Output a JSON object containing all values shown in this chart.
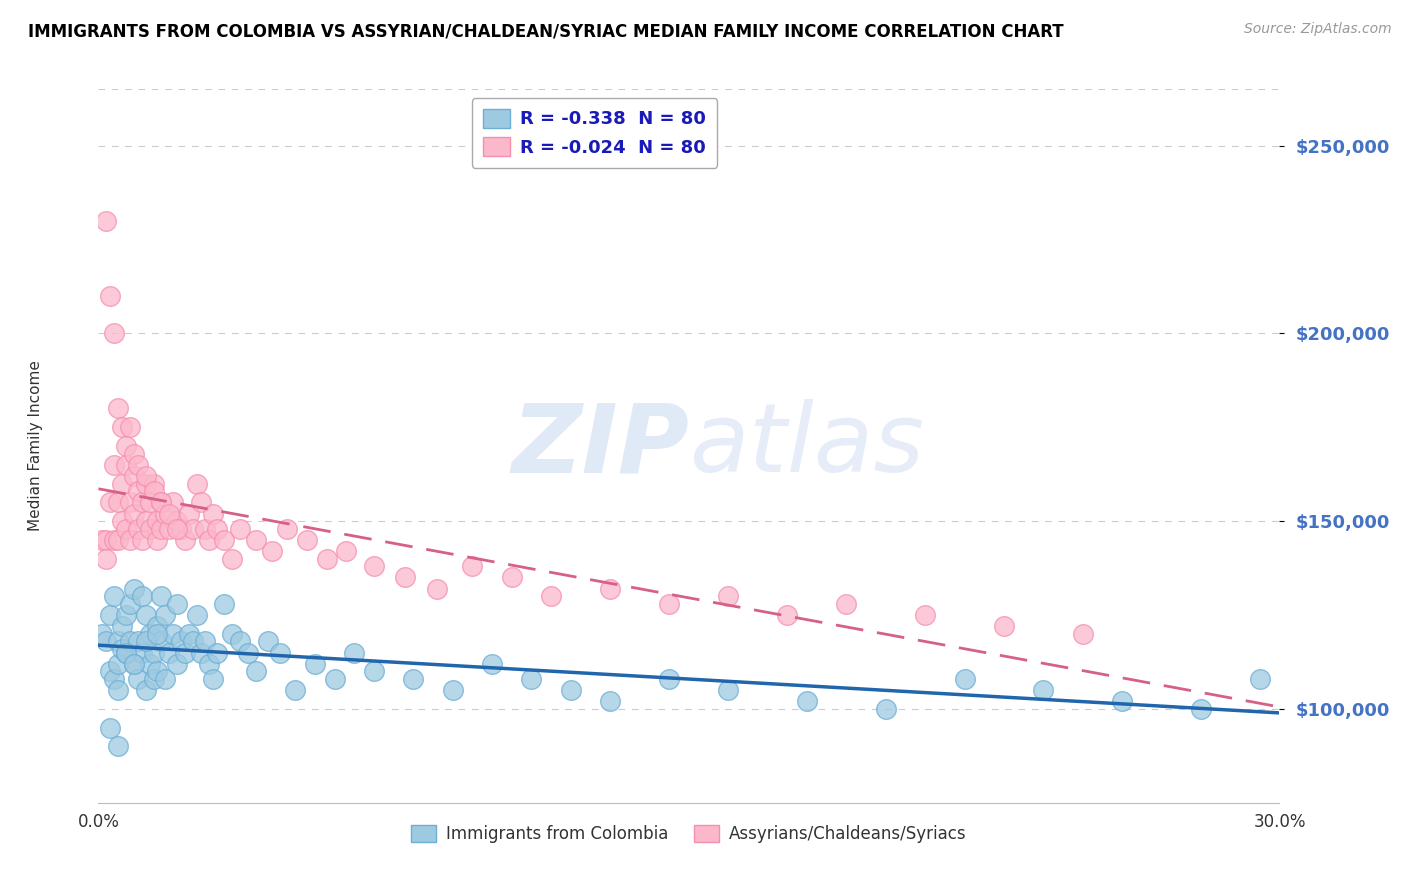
{
  "title": "IMMIGRANTS FROM COLOMBIA VS ASSYRIAN/CHALDEAN/SYRIAC MEDIAN FAMILY INCOME CORRELATION CHART",
  "source": "Source: ZipAtlas.com",
  "ylabel": "Median Family Income",
  "xlim": [
    0.0,
    0.3
  ],
  "ylim": [
    75000,
    265000
  ],
  "yticks": [
    100000,
    150000,
    200000,
    250000
  ],
  "ytick_labels": [
    "$100,000",
    "$150,000",
    "$200,000",
    "$250,000"
  ],
  "xticks": [
    0.0,
    0.05,
    0.1,
    0.15,
    0.2,
    0.25,
    0.3
  ],
  "xtick_labels": [
    "0.0%",
    "",
    "",
    "",
    "",
    "",
    "30.0%"
  ],
  "blue_R": -0.338,
  "blue_N": 80,
  "pink_R": -0.024,
  "pink_N": 80,
  "blue_color": "#9ecae1",
  "pink_color": "#fcb8cb",
  "blue_edge_color": "#6baed6",
  "pink_edge_color": "#f48fb1",
  "blue_line_color": "#2166ac",
  "pink_line_color": "#d6608a",
  "legend_label_blue": "Immigrants from Colombia",
  "legend_label_pink": "Assyrians/Chaldeans/Syriacs",
  "watermark_zip": "ZIP",
  "watermark_atlas": "atlas",
  "background_color": "#ffffff",
  "grid_color": "#cccccc",
  "title_color": "#000000",
  "source_color": "#999999",
  "ytick_color": "#4472c4",
  "blue_scatter_x": [
    0.001,
    0.002,
    0.003,
    0.003,
    0.004,
    0.004,
    0.005,
    0.005,
    0.005,
    0.006,
    0.006,
    0.007,
    0.007,
    0.008,
    0.008,
    0.009,
    0.009,
    0.01,
    0.01,
    0.011,
    0.011,
    0.012,
    0.012,
    0.013,
    0.013,
    0.014,
    0.014,
    0.015,
    0.015,
    0.016,
    0.016,
    0.017,
    0.017,
    0.018,
    0.019,
    0.02,
    0.02,
    0.021,
    0.022,
    0.023,
    0.024,
    0.025,
    0.026,
    0.027,
    0.028,
    0.029,
    0.03,
    0.032,
    0.034,
    0.036,
    0.038,
    0.04,
    0.043,
    0.046,
    0.05,
    0.055,
    0.06,
    0.065,
    0.07,
    0.08,
    0.09,
    0.1,
    0.11,
    0.12,
    0.13,
    0.145,
    0.16,
    0.18,
    0.2,
    0.22,
    0.24,
    0.26,
    0.28,
    0.295,
    0.003,
    0.005,
    0.007,
    0.009,
    0.012,
    0.015
  ],
  "blue_scatter_y": [
    120000,
    118000,
    125000,
    110000,
    130000,
    108000,
    118000,
    112000,
    105000,
    122000,
    116000,
    125000,
    115000,
    128000,
    118000,
    132000,
    112000,
    118000,
    108000,
    130000,
    115000,
    125000,
    105000,
    120000,
    112000,
    115000,
    108000,
    122000,
    110000,
    130000,
    118000,
    125000,
    108000,
    115000,
    120000,
    128000,
    112000,
    118000,
    115000,
    120000,
    118000,
    125000,
    115000,
    118000,
    112000,
    108000,
    115000,
    128000,
    120000,
    118000,
    115000,
    110000,
    118000,
    115000,
    105000,
    112000,
    108000,
    115000,
    110000,
    108000,
    105000,
    112000,
    108000,
    105000,
    102000,
    108000,
    105000,
    102000,
    100000,
    108000,
    105000,
    102000,
    100000,
    108000,
    95000,
    90000,
    115000,
    112000,
    118000,
    120000
  ],
  "pink_scatter_x": [
    0.001,
    0.002,
    0.002,
    0.003,
    0.004,
    0.004,
    0.005,
    0.005,
    0.006,
    0.006,
    0.007,
    0.007,
    0.008,
    0.008,
    0.009,
    0.009,
    0.01,
    0.01,
    0.011,
    0.011,
    0.012,
    0.012,
    0.013,
    0.013,
    0.014,
    0.015,
    0.015,
    0.016,
    0.016,
    0.017,
    0.018,
    0.019,
    0.02,
    0.021,
    0.022,
    0.023,
    0.024,
    0.025,
    0.026,
    0.027,
    0.028,
    0.029,
    0.03,
    0.032,
    0.034,
    0.036,
    0.04,
    0.044,
    0.048,
    0.053,
    0.058,
    0.063,
    0.07,
    0.078,
    0.086,
    0.095,
    0.105,
    0.115,
    0.13,
    0.145,
    0.16,
    0.175,
    0.19,
    0.21,
    0.23,
    0.25,
    0.002,
    0.003,
    0.004,
    0.005,
    0.006,
    0.007,
    0.008,
    0.009,
    0.01,
    0.012,
    0.014,
    0.016,
    0.018,
    0.02
  ],
  "pink_scatter_y": [
    145000,
    145000,
    140000,
    155000,
    165000,
    145000,
    155000,
    145000,
    160000,
    150000,
    165000,
    148000,
    155000,
    145000,
    162000,
    152000,
    158000,
    148000,
    155000,
    145000,
    160000,
    150000,
    148000,
    155000,
    160000,
    150000,
    145000,
    155000,
    148000,
    152000,
    148000,
    155000,
    150000,
    148000,
    145000,
    152000,
    148000,
    160000,
    155000,
    148000,
    145000,
    152000,
    148000,
    145000,
    140000,
    148000,
    145000,
    142000,
    148000,
    145000,
    140000,
    142000,
    138000,
    135000,
    132000,
    138000,
    135000,
    130000,
    132000,
    128000,
    130000,
    125000,
    128000,
    125000,
    122000,
    120000,
    230000,
    210000,
    200000,
    180000,
    175000,
    170000,
    175000,
    168000,
    165000,
    162000,
    158000,
    155000,
    152000,
    148000
  ]
}
